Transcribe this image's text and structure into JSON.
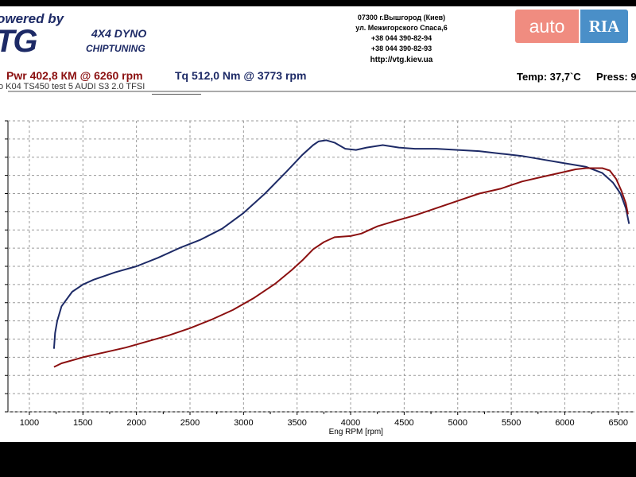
{
  "header": {
    "logo_top": "owered by",
    "logo_main": "TG",
    "logo_sub1": "4X4 DYNO",
    "logo_sub2": "CHIPTUNING",
    "contact_lines": [
      "07300 г.Вышгород (Киев)",
      "ул. Межигорского Спаса,6",
      "+38 044 390-82-94",
      "+38 044 390-82-93"
    ],
    "url": "http://vtg.kiev.ua",
    "watermark_auto": "auto",
    "watermark_ria": "RIA"
  },
  "status": {
    "pwr": "Pwr  402,8 КМ @ 6260 rpm",
    "tq": "Tq 512,0 Nm @ 3773 rpm",
    "temp": "Temp: 37,7`C",
    "press": "Press: 9"
  },
  "run_name": "o K04 TS450 test 5 AUDI S3 2.0 TFSI",
  "colors": {
    "torque": "#1d2a66",
    "power": "#8b1010",
    "grid": "#999999"
  },
  "chart_data": {
    "type": "line",
    "xlabel": "Eng RPM [rpm]",
    "x_ticks": [
      "1000",
      "1500",
      "2000",
      "2500",
      "3000",
      "3500",
      "4000",
      "4500",
      "5000",
      "5500",
      "6000",
      "6500"
    ],
    "xlim": [
      800,
      6650
    ],
    "grid": true,
    "series": [
      {
        "color": "#1d2a66",
        "points": [
          [
            1230,
            52
          ],
          [
            1240,
            65
          ],
          [
            1260,
            75
          ],
          [
            1300,
            87
          ],
          [
            1400,
            99
          ],
          [
            1500,
            105
          ],
          [
            1600,
            109
          ],
          [
            1800,
            115
          ],
          [
            2000,
            120
          ],
          [
            2200,
            127
          ],
          [
            2400,
            135
          ],
          [
            2600,
            142
          ],
          [
            2800,
            151
          ],
          [
            3000,
            164
          ],
          [
            3200,
            180
          ],
          [
            3400,
            198
          ],
          [
            3550,
            212
          ],
          [
            3650,
            220
          ],
          [
            3700,
            223
          ],
          [
            3773,
            224
          ],
          [
            3850,
            222
          ],
          [
            3950,
            217
          ],
          [
            4050,
            216
          ],
          [
            4150,
            218
          ],
          [
            4300,
            220
          ],
          [
            4450,
            218
          ],
          [
            4600,
            217
          ],
          [
            4800,
            217
          ],
          [
            5000,
            216
          ],
          [
            5200,
            215
          ],
          [
            5400,
            213
          ],
          [
            5600,
            211
          ],
          [
            5800,
            208
          ],
          [
            6000,
            205
          ],
          [
            6200,
            202
          ],
          [
            6350,
            197
          ],
          [
            6450,
            189
          ],
          [
            6520,
            180
          ],
          [
            6570,
            168
          ],
          [
            6600,
            155
          ]
        ]
      },
      {
        "color": "#8b1010",
        "points": [
          [
            1230,
            37
          ],
          [
            1300,
            40
          ],
          [
            1500,
            45
          ],
          [
            1700,
            49
          ],
          [
            1900,
            53
          ],
          [
            2100,
            58
          ],
          [
            2300,
            63
          ],
          [
            2500,
            69
          ],
          [
            2700,
            76
          ],
          [
            2900,
            84
          ],
          [
            3100,
            94
          ],
          [
            3300,
            106
          ],
          [
            3450,
            117
          ],
          [
            3550,
            125
          ],
          [
            3650,
            134
          ],
          [
            3750,
            140
          ],
          [
            3850,
            144
          ],
          [
            4000,
            145
          ],
          [
            4100,
            147
          ],
          [
            4250,
            153
          ],
          [
            4400,
            157
          ],
          [
            4600,
            162
          ],
          [
            4800,
            168
          ],
          [
            5000,
            174
          ],
          [
            5200,
            180
          ],
          [
            5400,
            184
          ],
          [
            5600,
            190
          ],
          [
            5800,
            194
          ],
          [
            6000,
            198
          ],
          [
            6100,
            200
          ],
          [
            6200,
            201
          ],
          [
            6350,
            201
          ],
          [
            6420,
            199
          ],
          [
            6480,
            192
          ],
          [
            6530,
            182
          ],
          [
            6570,
            172
          ],
          [
            6590,
            163
          ]
        ]
      }
    ]
  }
}
